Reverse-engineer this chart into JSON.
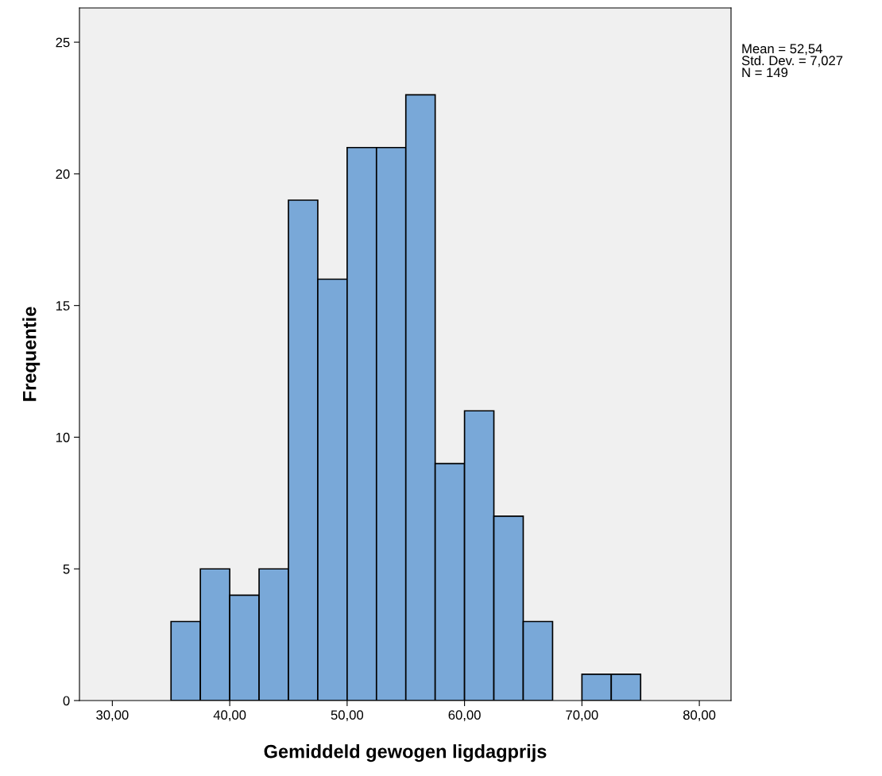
{
  "chart_data": {
    "type": "histogram",
    "xlabel": "Gemiddeld gewogen ligdagprijs",
    "ylabel": "Frequentie",
    "bins": [
      35,
      37.5,
      40,
      42.5,
      45,
      47.5,
      50,
      52.5,
      55,
      57.5,
      60,
      62.5,
      65,
      67.5,
      70,
      72.5,
      75
    ],
    "values": [
      3,
      5,
      4,
      5,
      19,
      16,
      21,
      21,
      23,
      9,
      11,
      7,
      3,
      0,
      1,
      1
    ],
    "color": "#79a8d8",
    "xlim": [
      27.2,
      82.7
    ],
    "xticks": [
      {
        "value": 30,
        "label": "30,00"
      },
      {
        "value": 40,
        "label": "40,00"
      },
      {
        "value": 50,
        "label": "50,00"
      },
      {
        "value": 60,
        "label": "60,00"
      },
      {
        "value": 70,
        "label": "70,00"
      },
      {
        "value": 80,
        "label": "80,00"
      }
    ],
    "ylim": [
      0,
      26.3
    ],
    "yticks": [
      0,
      5,
      10,
      15,
      20,
      25
    ],
    "grid": false,
    "annotations": [
      "Mean = 52,54\nStd. Dev. = 7,027\nN = 149"
    ]
  }
}
